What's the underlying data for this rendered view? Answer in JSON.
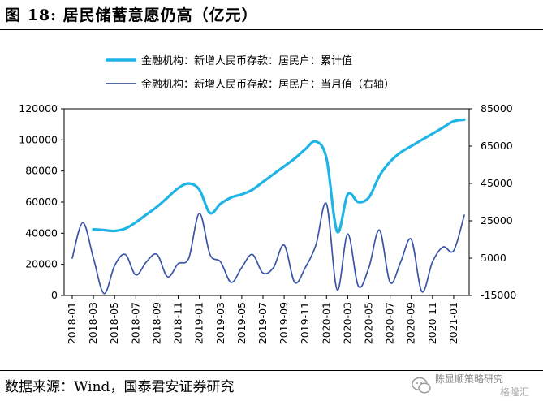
{
  "header": {
    "title": "图 18: 居民储蓄意愿仍高（亿元）"
  },
  "footer": {
    "source": "数据来源：Wind，国泰君安证券研究",
    "watermark_line1": "陈显顺策略研究",
    "watermark_line2": "格隆汇",
    "watermark_icon": "wechat-icon"
  },
  "chart_data": {
    "type": "line",
    "title": "图 18: 居民储蓄意愿仍高（亿元）",
    "x": [
      "2018-01",
      "2018-02",
      "2018-03",
      "2018-04",
      "2018-05",
      "2018-06",
      "2018-07",
      "2018-08",
      "2018-09",
      "2018-10",
      "2018-11",
      "2018-12",
      "2019-01",
      "2019-02",
      "2019-03",
      "2019-04",
      "2019-05",
      "2019-06",
      "2019-07",
      "2019-08",
      "2019-09",
      "2019-10",
      "2019-11",
      "2019-12",
      "2020-01",
      "2020-02",
      "2020-03",
      "2020-04",
      "2020-05",
      "2020-06",
      "2020-07",
      "2020-08",
      "2020-09",
      "2020-10",
      "2020-11",
      "2020-12",
      "2021-01",
      "2021-02"
    ],
    "x_tick_labels": [
      "2018-01",
      "2018-03",
      "2018-05",
      "2018-07",
      "2018-09",
      "2018-11",
      "2019-01",
      "2019-03",
      "2019-05",
      "2019-07",
      "2019-09",
      "2019-11",
      "2020-01",
      "2020-03",
      "2020-05",
      "2020-07",
      "2020-09",
      "2020-11",
      "2021-01"
    ],
    "y_left": {
      "ticks": [
        "0",
        "20000",
        "40000",
        "60000",
        "80000",
        "100000",
        "120000"
      ],
      "range": [
        0,
        120000
      ]
    },
    "y_right": {
      "ticks": [
        "-15000",
        "5000",
        "25000",
        "45000",
        "65000",
        "85000"
      ],
      "range": [
        -15000,
        85000
      ]
    },
    "legend_position": "top",
    "series": [
      {
        "name": "金融机构：新增人民币存款：居民户：累计值",
        "axis": "left",
        "color": "#1fb4e6",
        "start_index": 2,
        "values": [
          null,
          null,
          42500,
          42000,
          41500,
          43000,
          47000,
          52000,
          57000,
          63000,
          69000,
          72000,
          68000,
          53000,
          59000,
          63000,
          65000,
          68000,
          73000,
          78000,
          83000,
          88000,
          94000,
          99000,
          88000,
          41000,
          65000,
          60000,
          63000,
          77000,
          86000,
          92000,
          96000,
          100000,
          104000,
          108000,
          112000,
          113000
        ]
      },
      {
        "name": "金融机构：新增人民币存款：居民户：当月值（右轴）",
        "axis": "right",
        "color": "#3a55a8",
        "start_index": 0,
        "values": [
          5000,
          24000,
          5000,
          -14000,
          1000,
          7000,
          -4000,
          3000,
          7000,
          -5000,
          2000,
          5000,
          29000,
          7000,
          3000,
          -8000,
          0,
          7000,
          -3000,
          0,
          12000,
          -8000,
          0,
          12000,
          34000,
          -12000,
          18000,
          -10000,
          0,
          20000,
          -8000,
          3000,
          15000,
          -13000,
          3000,
          11000,
          9000,
          28000
        ]
      }
    ]
  }
}
